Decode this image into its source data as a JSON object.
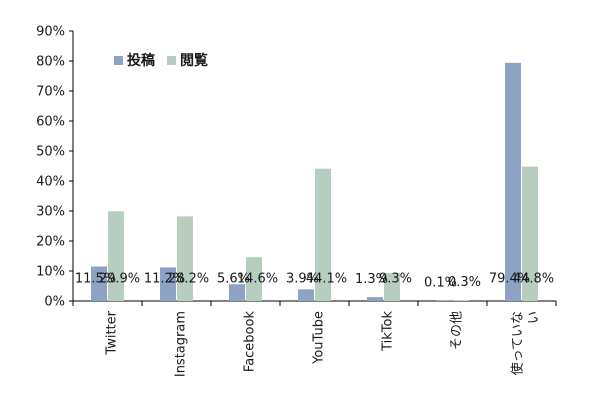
{
  "chart_data": {
    "type": "bar",
    "categories": [
      "Twitter",
      "Instagram",
      "Facebook",
      "YouTube",
      "TikTok",
      "その他",
      "使っていない"
    ],
    "series": [
      {
        "name": "投稿",
        "values": [
          11.5,
          11.2,
          5.6,
          3.9,
          1.3,
          0.1,
          79.4
        ],
        "labels": [
          "11.5%",
          "11.2%",
          "5.6%",
          "3.9%",
          "1.3%",
          "0.1%",
          "79.4%"
        ]
      },
      {
        "name": "閲覧",
        "values": [
          29.9,
          28.2,
          14.6,
          44.1,
          9.3,
          0.3,
          44.8
        ],
        "labels": [
          "29.9%",
          "28.2%",
          "14.6%",
          "44.1%",
          "9.3%",
          "0.3%",
          "44.8%"
        ]
      }
    ],
    "ylim": [
      0,
      90
    ],
    "y_ticks": [
      "0%",
      "10%",
      "20%",
      "30%",
      "40%",
      "50%",
      "60%",
      "70%",
      "80%",
      "90%"
    ],
    "grid": false,
    "legend_position": "top-left",
    "colors": {
      "投稿": "#8ea3c3",
      "閲覧": "#b7cdc0"
    }
  }
}
